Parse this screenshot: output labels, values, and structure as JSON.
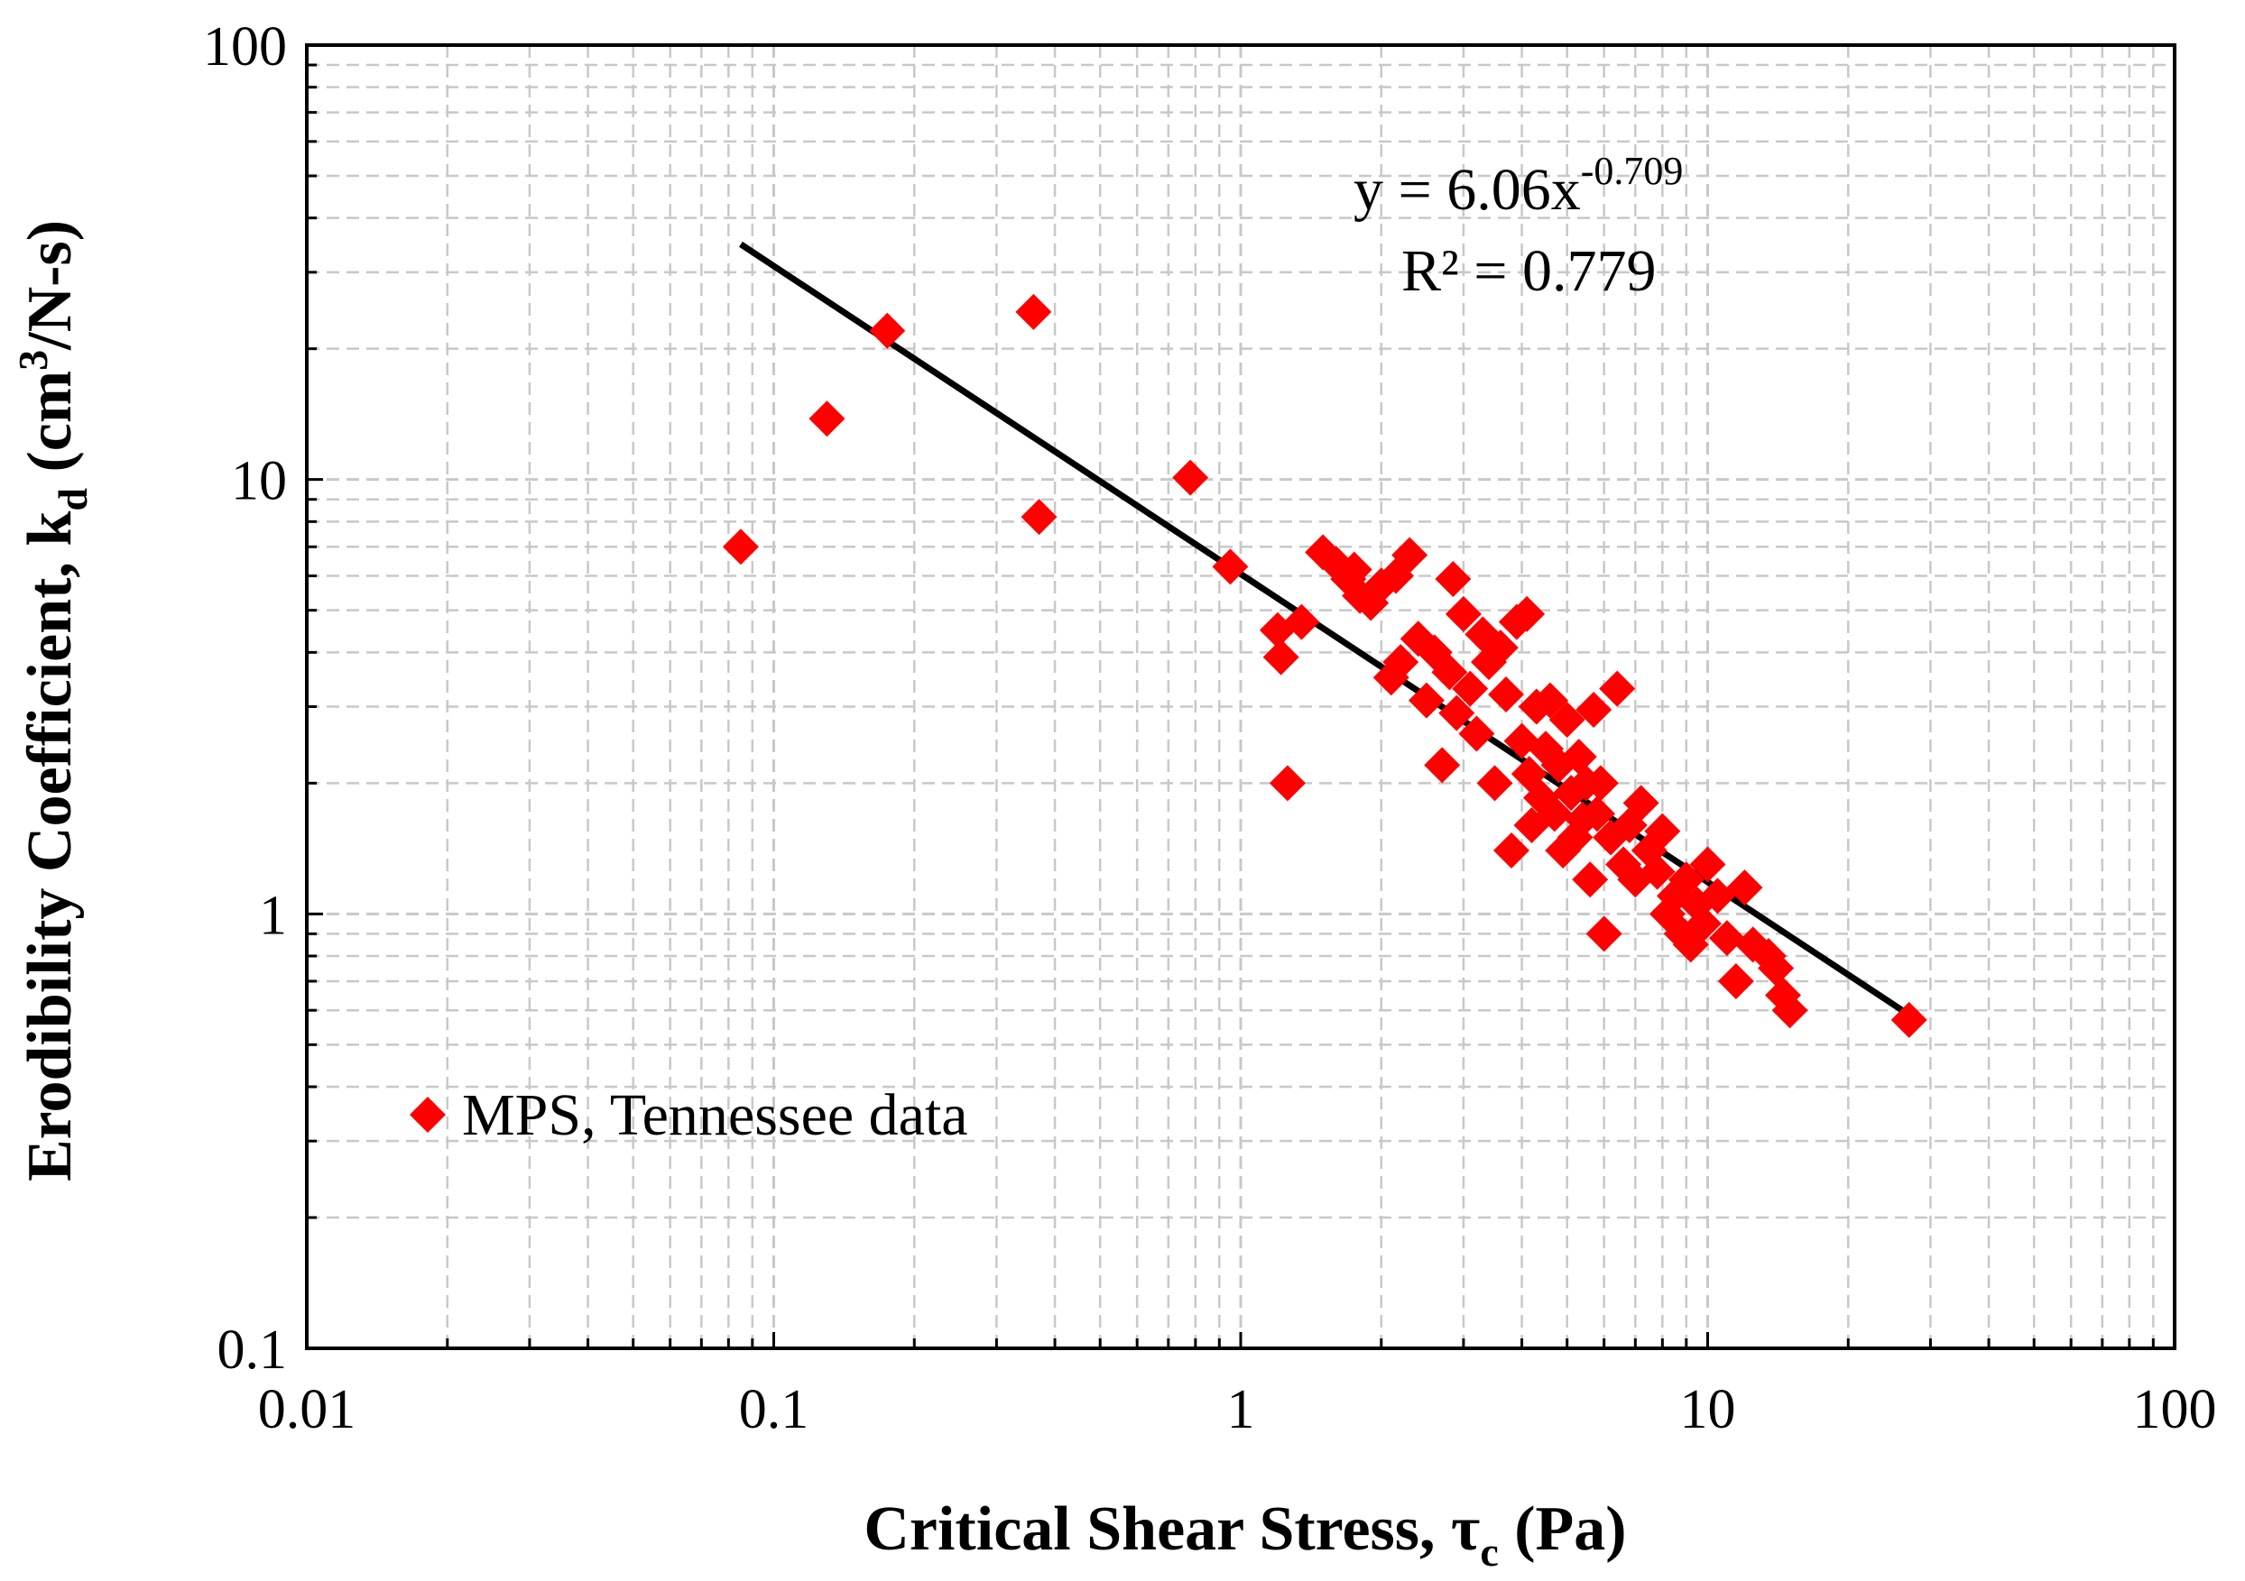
{
  "chart_data": {
    "type": "scatter",
    "x_scale": "log",
    "y_scale": "log",
    "xlim": [
      0.01,
      100
    ],
    "ylim": [
      0.1,
      100
    ],
    "grid": true,
    "legend_position": "bottom-left",
    "colors": {
      "points": "#ff0000",
      "trendline": "#000000",
      "grid": "#c8c8c8"
    },
    "xlabel": {
      "prefix": "Critical Shear Stress, ",
      "symbol": "τ",
      "subscript": "c",
      "suffix": " (Pa)"
    },
    "ylabel": {
      "prefix": "Erodibility Coefficient, k",
      "subscript": "d",
      "middle": " (cm",
      "superscript": "3",
      "suffix": "/N-s)"
    },
    "x_tick_labels": [
      "0.01",
      "0.1",
      "1",
      "10",
      "100"
    ],
    "y_tick_labels": [
      "0.1",
      "1",
      "10",
      "100"
    ],
    "annotation": {
      "equation_prefix": "y = 6.06x",
      "equation_exponent": "-0.709",
      "r_squared": "R² = 0.779"
    },
    "trendline": {
      "coefficient": 6.06,
      "exponent": -0.709,
      "x_range": [
        0.085,
        27
      ]
    },
    "series": [
      {
        "name": "MPS, Tennessee data",
        "marker": "diamond",
        "points": [
          [
            0.085,
            7.0
          ],
          [
            0.13,
            13.8
          ],
          [
            0.175,
            22.0
          ],
          [
            0.36,
            24.3
          ],
          [
            0.37,
            8.2
          ],
          [
            0.78,
            10.1
          ],
          [
            0.95,
            6.3
          ],
          [
            1.2,
            4.5
          ],
          [
            1.22,
            3.9
          ],
          [
            1.26,
            2.0
          ],
          [
            1.35,
            4.7
          ],
          [
            1.5,
            6.8
          ],
          [
            1.6,
            6.4
          ],
          [
            1.7,
            5.9
          ],
          [
            1.75,
            6.2
          ],
          [
            1.8,
            5.4
          ],
          [
            1.9,
            5.2
          ],
          [
            2.0,
            5.7
          ],
          [
            2.1,
            3.5
          ],
          [
            2.15,
            6.0
          ],
          [
            2.2,
            3.8
          ],
          [
            2.3,
            6.7
          ],
          [
            2.4,
            4.3
          ],
          [
            2.5,
            3.1
          ],
          [
            2.6,
            4.0
          ],
          [
            2.7,
            2.2
          ],
          [
            2.8,
            3.6
          ],
          [
            2.85,
            5.9
          ],
          [
            2.9,
            2.9
          ],
          [
            3.0,
            4.9
          ],
          [
            3.1,
            3.3
          ],
          [
            3.2,
            2.6
          ],
          [
            3.3,
            4.4
          ],
          [
            3.4,
            3.8
          ],
          [
            3.5,
            2.0
          ],
          [
            3.6,
            4.1
          ],
          [
            3.7,
            3.2
          ],
          [
            3.8,
            1.4
          ],
          [
            3.9,
            4.7
          ],
          [
            4.0,
            2.5
          ],
          [
            4.1,
            4.9
          ],
          [
            4.15,
            2.1
          ],
          [
            4.2,
            1.6
          ],
          [
            4.3,
            3.0
          ],
          [
            4.4,
            1.85
          ],
          [
            4.5,
            2.4
          ],
          [
            4.6,
            3.1
          ],
          [
            4.7,
            1.7
          ],
          [
            4.8,
            2.2
          ],
          [
            4.9,
            1.4
          ],
          [
            5.0,
            2.8
          ],
          [
            5.1,
            1.9
          ],
          [
            5.2,
            1.5
          ],
          [
            5.3,
            2.3
          ],
          [
            5.4,
            1.65
          ],
          [
            5.5,
            2.0
          ],
          [
            5.6,
            1.2
          ],
          [
            5.7,
            2.95
          ],
          [
            5.8,
            1.7
          ],
          [
            5.9,
            2.0
          ],
          [
            6.0,
            0.9
          ],
          [
            6.2,
            1.5
          ],
          [
            6.4,
            3.3
          ],
          [
            6.6,
            1.3
          ],
          [
            6.8,
            1.6
          ],
          [
            7.0,
            1.2
          ],
          [
            7.2,
            1.8
          ],
          [
            7.5,
            1.4
          ],
          [
            7.8,
            1.25
          ],
          [
            8.0,
            1.55
          ],
          [
            8.2,
            1.0
          ],
          [
            8.5,
            1.1
          ],
          [
            8.8,
            0.9
          ],
          [
            9.0,
            1.2
          ],
          [
            9.2,
            0.85
          ],
          [
            9.5,
            1.05
          ],
          [
            9.8,
            0.95
          ],
          [
            10.0,
            1.3
          ],
          [
            10.5,
            1.1
          ],
          [
            11.0,
            0.88
          ],
          [
            11.5,
            0.7
          ],
          [
            12.0,
            1.15
          ],
          [
            12.5,
            0.85
          ],
          [
            13.5,
            0.8
          ],
          [
            14.0,
            0.75
          ],
          [
            14.5,
            0.65
          ],
          [
            15.0,
            0.6
          ],
          [
            27.0,
            0.57
          ]
        ]
      }
    ]
  }
}
